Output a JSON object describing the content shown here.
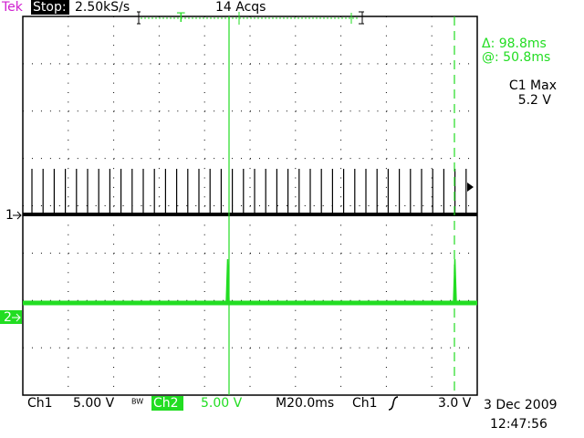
{
  "header": {
    "brand": "Tek",
    "status": "Stop:",
    "sample_rate": "2.50kS/s",
    "acquisitions": "14 Acqs",
    "trigger_marker": "T"
  },
  "readout": {
    "delta": "Δ: 98.8ms",
    "at": "@: 50.8ms",
    "measure_label": "C1 Max",
    "measure_value": "5.2 V"
  },
  "channels": [
    {
      "marker": "1"
    },
    {
      "marker": "2"
    }
  ],
  "footer": {
    "ch1_label": "Ch1",
    "ch1_scale": "5.00 V",
    "bw": "BW",
    "ch2_label": "Ch2",
    "ch2_scale": "5.00 V",
    "timebase": "M20.0ms",
    "trigger_source": "Ch1",
    "trigger_level": "3.0 V",
    "date": "3 Dec 2009",
    "time": "12:47:56"
  }
}
